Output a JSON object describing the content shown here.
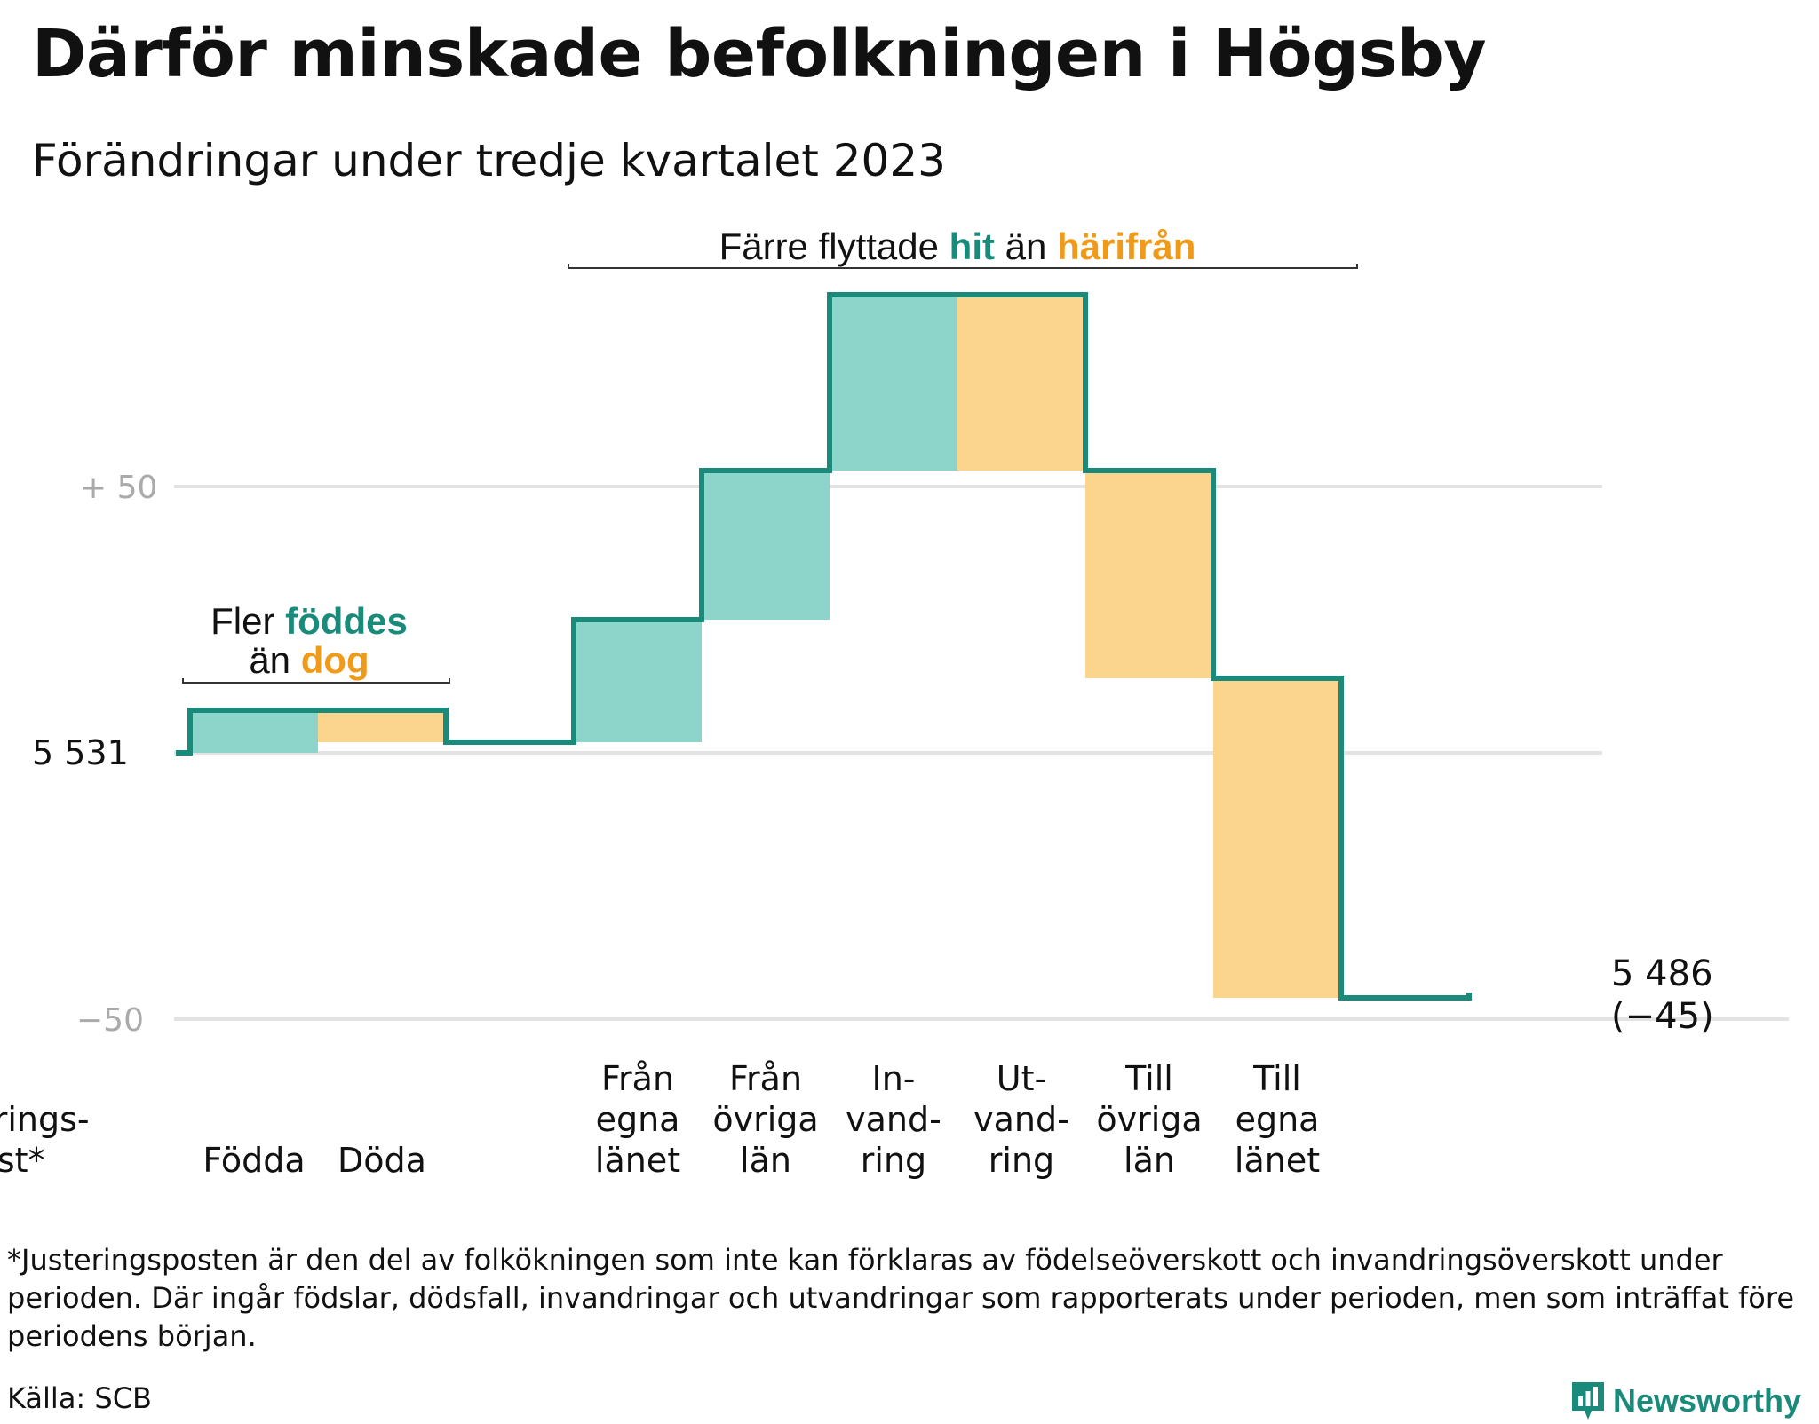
{
  "title": "Därför minskade befolkningen i Högsby",
  "subtitle": "Förändringar under tredje kvartalet 2023",
  "colors": {
    "inflow": "#8dd4cb",
    "outflow": "#fbd58e",
    "line": "#1a8a7b",
    "accent_orange": "#f09a1a",
    "grid": "#e3e3e3",
    "tick": "#aaaaaa"
  },
  "chart_data": {
    "type": "waterfall",
    "y_axis": {
      "ticks": [
        "+  50",
        "5  531",
        "−50"
      ],
      "tick_values": [
        50,
        0,
        -50
      ],
      "grid": true
    },
    "start_value": 5531,
    "steps": [
      {
        "label_lines": [
          "Födda"
        ],
        "change": 8,
        "kind": "in"
      },
      {
        "label_lines": [
          "Döda"
        ],
        "change": -6,
        "kind": "out"
      },
      {
        "label_lines": [
          "Från",
          "egna",
          "länet"
        ],
        "change": 23,
        "kind": "in"
      },
      {
        "label_lines": [
          "Från",
          "övriga",
          "län"
        ],
        "change": 28,
        "kind": "in"
      },
      {
        "label_lines": [
          "In-",
          "vand-",
          "ring"
        ],
        "change": 33,
        "kind": "in"
      },
      {
        "label_lines": [
          "Ut-",
          "vand-",
          "ring"
        ],
        "change": -33,
        "kind": "out"
      },
      {
        "label_lines": [
          "Till",
          "övriga",
          "län"
        ],
        "change": -39,
        "kind": "out"
      },
      {
        "label_lines": [
          "Till",
          "egna",
          "länet"
        ],
        "change": -60,
        "kind": "out"
      },
      {
        "label_lines": [
          "Justerings-",
          "post*"
        ],
        "change": 1,
        "kind": "adjust"
      }
    ],
    "end_value_label": "5 486",
    "end_change_label": "(−45)",
    "annotations": [
      {
        "parts": [
          {
            "text": "Fler ",
            "style": "plain"
          },
          {
            "text": "föddes",
            "style": "in"
          }
        ]
      },
      {
        "parts": [
          {
            "text": "än ",
            "style": "plain"
          },
          {
            "text": "dog",
            "style": "out"
          }
        ]
      },
      {
        "parts": [
          {
            "text": "Färre flyttade ",
            "style": "plain"
          },
          {
            "text": "hit",
            "style": "in"
          },
          {
            "text": " än ",
            "style": "plain"
          },
          {
            "text": "härifrån",
            "style": "out"
          }
        ]
      }
    ]
  },
  "footnote": "*Justeringsposten är den del av folkökningen som inte kan förklaras av födelseöverskott och invandringsöverskott under perioden. Där ingår födslar, dödsfall, invandringar och utvandringar som rapporterats under perioden, men som inträffat före periodens början.",
  "source": "Källa: SCB",
  "brand": {
    "name": "Newsworthy",
    "icon": "newsworthy-logo-icon"
  }
}
